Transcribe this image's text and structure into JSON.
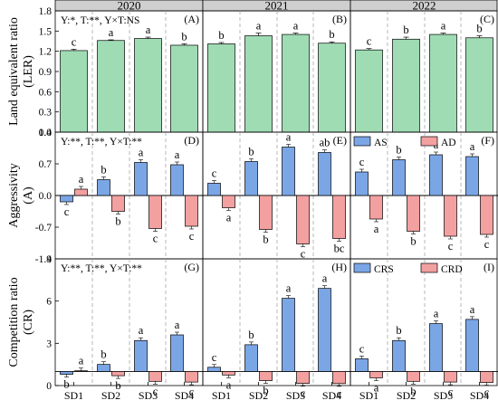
{
  "figure": {
    "years": [
      "2020",
      "2021",
      "2022"
    ],
    "categories": [
      "SD1",
      "SD2",
      "SD3",
      "SD4"
    ],
    "colors": {
      "ler": "#9fdcb4",
      "as": "#7ba6e6",
      "ad": "#f2a0a0",
      "header": "#cfcfcf",
      "sep": "#999999"
    }
  },
  "chart_data": [
    {
      "type": "bar",
      "row": "LER",
      "ylabel": "Land equivalent ratio (LER)",
      "ylim": [
        0.0,
        1.8
      ],
      "yticks": [
        "0.0",
        "0.3",
        "0.6",
        "0.9",
        "1.2",
        "1.5",
        "1.8"
      ],
      "stats": "Y:*, T:**, Y×T:NS",
      "panels": [
        {
          "tag": "(A)",
          "year": "2020",
          "values": [
            1.21,
            1.36,
            1.39,
            1.29
          ],
          "err": [
            0.02,
            0.01,
            0.02,
            0.02
          ],
          "letters": [
            "c",
            "a",
            "a",
            "b"
          ]
        },
        {
          "tag": "(B)",
          "year": "2021",
          "values": [
            1.31,
            1.43,
            1.45,
            1.32
          ],
          "err": [
            0.02,
            0.04,
            0.02,
            0.02
          ],
          "letters": [
            "b",
            "a",
            "a",
            "b"
          ]
        },
        {
          "tag": "(C)",
          "year": "2022",
          "values": [
            1.22,
            1.38,
            1.45,
            1.4
          ],
          "err": [
            0.02,
            0.03,
            0.02,
            0.03
          ],
          "letters": [
            "c",
            "b",
            "a",
            "b"
          ]
        }
      ]
    },
    {
      "type": "bar",
      "row": "A",
      "ylabel": "Aggressivity (A)",
      "ylim": [
        -1.4,
        1.4
      ],
      "yticks": [
        "-1.4",
        "-0.7",
        "0.0",
        "0.7",
        "1.4"
      ],
      "stats": "Y:**, T:**, Y×T:**",
      "legend": [
        "AS",
        "AD"
      ],
      "panels": [
        {
          "tag": "(D)",
          "year": "2020",
          "AS": [
            -0.14,
            0.35,
            0.73,
            0.68
          ],
          "AD": [
            0.14,
            -0.35,
            -0.73,
            -0.68
          ],
          "letters_AS": [
            "c",
            "b",
            "a",
            "a"
          ],
          "letters_AD": [
            "a",
            "b",
            "c",
            "c"
          ]
        },
        {
          "tag": "(E)",
          "year": "2021",
          "AS": [
            0.27,
            0.75,
            1.07,
            0.95
          ],
          "AD": [
            -0.27,
            -0.75,
            -1.07,
            -0.95
          ],
          "letters_AS": [
            "c",
            "b",
            "a",
            "ab"
          ],
          "letters_AD": [
            "a",
            "b",
            "c",
            "bc"
          ]
        },
        {
          "tag": "(F)",
          "year": "2022",
          "AS": [
            0.52,
            0.79,
            0.9,
            0.86
          ],
          "AD": [
            -0.52,
            -0.79,
            -0.9,
            -0.86
          ],
          "letters_AS": [
            "c",
            "b",
            "a",
            "a"
          ],
          "letters_AD": [
            "a",
            "b",
            "c",
            "c"
          ]
        }
      ]
    },
    {
      "type": "bar",
      "row": "CR",
      "ylabel": "Competition ratio (CR)",
      "ylim": [
        0,
        9
      ],
      "yticks": [
        "0",
        "3",
        "6",
        "9"
      ],
      "stats": "Y:**, T:**, Y×T:**",
      "legend": [
        "CRS",
        "CRD"
      ],
      "panels": [
        {
          "tag": "(G)",
          "year": "2020",
          "CRS": [
            0.8,
            1.5,
            3.2,
            3.6
          ],
          "CRD": [
            1.05,
            0.7,
            0.3,
            0.25
          ],
          "letters_CRS": [
            "b",
            "b",
            "a",
            "a"
          ],
          "letters_CRD": [
            "a",
            "b",
            "c",
            "c"
          ]
        },
        {
          "tag": "(H)",
          "year": "2021",
          "CRS": [
            1.3,
            2.9,
            6.2,
            6.9
          ],
          "CRD": [
            0.75,
            0.35,
            0.15,
            0.14
          ],
          "letters_CRS": [
            "c",
            "b",
            "a",
            "a"
          ],
          "letters_CRD": [
            "a",
            "b",
            "c",
            "c"
          ]
        },
        {
          "tag": "(I)",
          "year": "2022",
          "CRS": [
            1.9,
            3.2,
            4.4,
            4.7
          ],
          "CRD": [
            0.55,
            0.3,
            0.25,
            0.22
          ],
          "letters_CRS": [
            "c",
            "b",
            "a",
            "a"
          ],
          "letters_CRD": [
            "a",
            "b",
            "c",
            "c"
          ]
        }
      ]
    }
  ]
}
